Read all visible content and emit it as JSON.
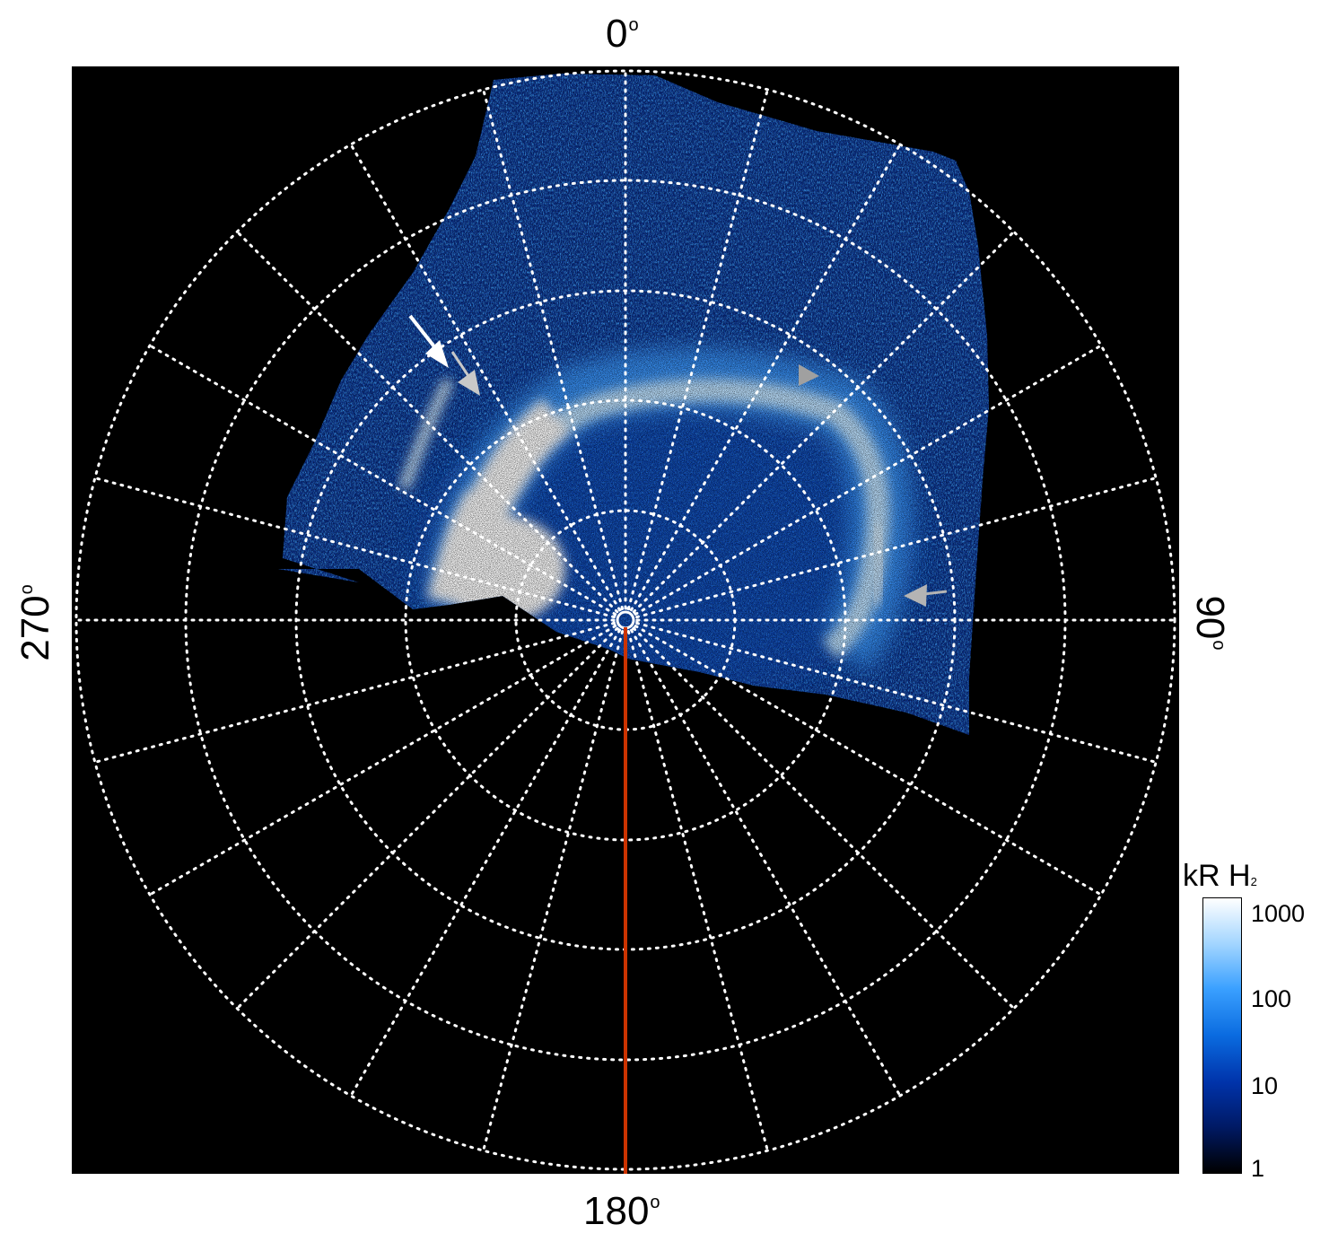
{
  "labels": {
    "top": "0",
    "bottom": "180",
    "left": "270",
    "right": "90",
    "degree_symbol": "o"
  },
  "colorbar": {
    "title_main": "kR H",
    "title_sub": "2",
    "ticks": [
      "1000",
      "100",
      "10",
      "1"
    ],
    "scale": "log",
    "range": [
      1,
      1500
    ],
    "colors": [
      "#000000",
      "#001a66",
      "#0033aa",
      "#0a6be0",
      "#3aa0ff",
      "#a0d4ff",
      "#ffffff"
    ]
  },
  "plot": {
    "background": "#000000",
    "grid_color": "#ffffff",
    "meridian_line_color": "#cc3300",
    "aurora_colors": [
      "#0a3aa0",
      "#1e6fe6",
      "#63b4ff",
      "#d6eeff",
      "#ffffff"
    ]
  },
  "annotations": {
    "arrows": [
      {
        "color": "#ffffff",
        "kind": "white-arrow"
      },
      {
        "color": "#c8c8c8",
        "kind": "grey-arrow"
      },
      {
        "color": "#a0a0a0",
        "kind": "grey-arrowhead"
      },
      {
        "color": "#b4b4b4",
        "kind": "grey-arrow"
      }
    ]
  }
}
